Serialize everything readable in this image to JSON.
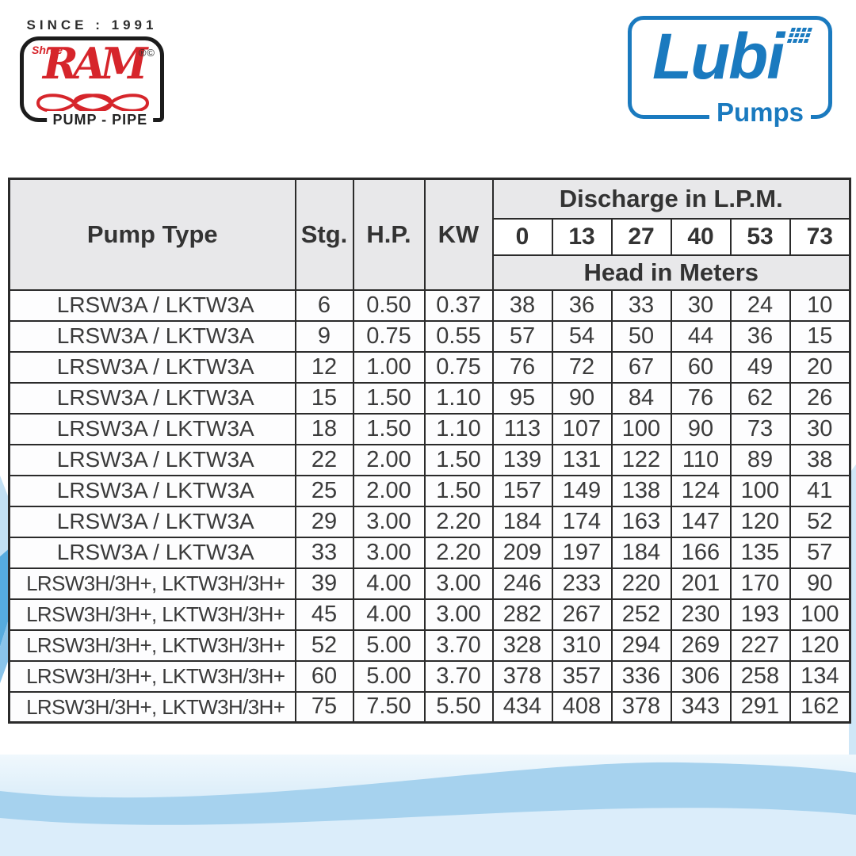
{
  "branding": {
    "since": "SINCE : 1991",
    "ram_logo": {
      "shree": "Shree",
      "name": "RAM",
      "marks": "®©",
      "tagline": "PUMP - PIPE"
    },
    "lubi_logo": {
      "name": "Lubi",
      "sub": "Pumps"
    }
  },
  "colors": {
    "brand_red": "#d6252b",
    "brand_blue": "#1a7abf",
    "table_header_bg": "#e8e8ea",
    "table_border": "#2b2b2b"
  },
  "table": {
    "headers": {
      "pump_type": "Pump Type",
      "stg": "Stg.",
      "hp": "H.P.",
      "kw": "KW",
      "discharge": "Discharge in L.P.M.",
      "head": "Head in Meters"
    },
    "discharge_values": [
      "0",
      "13",
      "27",
      "40",
      "53",
      "73"
    ],
    "rows": [
      {
        "pump": "LRSW3A / LKTW3A",
        "stg": "6",
        "hp": "0.50",
        "kw": "0.37",
        "heads": [
          "38",
          "36",
          "33",
          "30",
          "24",
          "10"
        ]
      },
      {
        "pump": "LRSW3A / LKTW3A",
        "stg": "9",
        "hp": "0.75",
        "kw": "0.55",
        "heads": [
          "57",
          "54",
          "50",
          "44",
          "36",
          "15"
        ]
      },
      {
        "pump": "LRSW3A / LKTW3A",
        "stg": "12",
        "hp": "1.00",
        "kw": "0.75",
        "heads": [
          "76",
          "72",
          "67",
          "60",
          "49",
          "20"
        ]
      },
      {
        "pump": "LRSW3A / LKTW3A",
        "stg": "15",
        "hp": "1.50",
        "kw": "1.10",
        "heads": [
          "95",
          "90",
          "84",
          "76",
          "62",
          "26"
        ]
      },
      {
        "pump": "LRSW3A / LKTW3A",
        "stg": "18",
        "hp": "1.50",
        "kw": "1.10",
        "heads": [
          "113",
          "107",
          "100",
          "90",
          "73",
          "30"
        ]
      },
      {
        "pump": "LRSW3A / LKTW3A",
        "stg": "22",
        "hp": "2.00",
        "kw": "1.50",
        "heads": [
          "139",
          "131",
          "122",
          "110",
          "89",
          "38"
        ]
      },
      {
        "pump": "LRSW3A / LKTW3A",
        "stg": "25",
        "hp": "2.00",
        "kw": "1.50",
        "heads": [
          "157",
          "149",
          "138",
          "124",
          "100",
          "41"
        ]
      },
      {
        "pump": "LRSW3A / LKTW3A",
        "stg": "29",
        "hp": "3.00",
        "kw": "2.20",
        "heads": [
          "184",
          "174",
          "163",
          "147",
          "120",
          "52"
        ]
      },
      {
        "pump": "LRSW3A / LKTW3A",
        "stg": "33",
        "hp": "3.00",
        "kw": "2.20",
        "heads": [
          "209",
          "197",
          "184",
          "166",
          "135",
          "57"
        ]
      },
      {
        "pump": "LRSW3H/3H+, LKTW3H/3H+",
        "stg": "39",
        "hp": "4.00",
        "kw": "3.00",
        "heads": [
          "246",
          "233",
          "220",
          "201",
          "170",
          "90"
        ]
      },
      {
        "pump": "LRSW3H/3H+, LKTW3H/3H+",
        "stg": "45",
        "hp": "4.00",
        "kw": "3.00",
        "heads": [
          "282",
          "267",
          "252",
          "230",
          "193",
          "100"
        ]
      },
      {
        "pump": "LRSW3H/3H+, LKTW3H/3H+",
        "stg": "52",
        "hp": "5.00",
        "kw": "3.70",
        "heads": [
          "328",
          "310",
          "294",
          "269",
          "227",
          "120"
        ]
      },
      {
        "pump": "LRSW3H/3H+, LKTW3H/3H+",
        "stg": "60",
        "hp": "5.00",
        "kw": "3.70",
        "heads": [
          "378",
          "357",
          "336",
          "306",
          "258",
          "134"
        ]
      },
      {
        "pump": "LRSW3H/3H+, LKTW3H/3H+",
        "stg": "75",
        "hp": "7.50",
        "kw": "5.50",
        "heads": [
          "434",
          "408",
          "378",
          "343",
          "291",
          "162"
        ]
      }
    ]
  }
}
